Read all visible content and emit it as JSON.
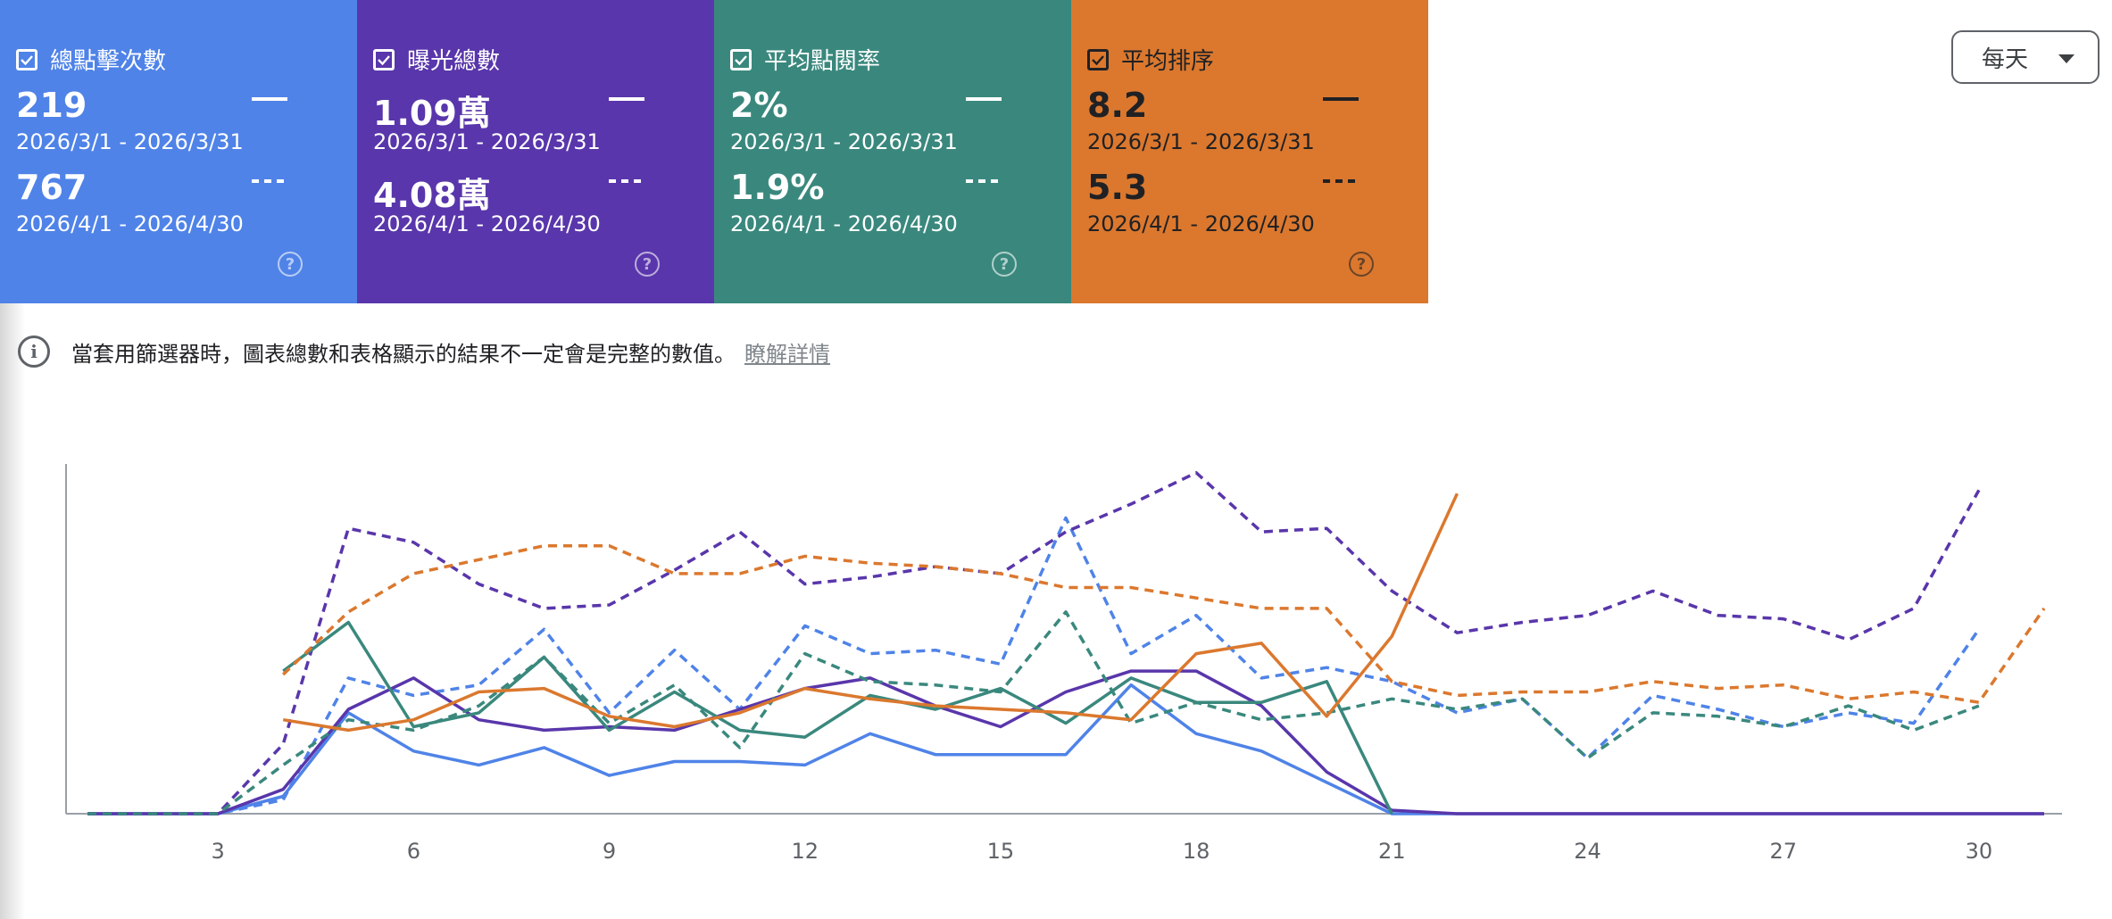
{
  "cards": [
    {
      "id": "clicks",
      "title": "總點擊次數",
      "value1": "219",
      "range1": "2026/3/1 - 2026/3/31",
      "value2": "767",
      "range2": "2026/4/1 - 2026/4/30",
      "bg": "#4f83e8",
      "checked": true
    },
    {
      "id": "impressions",
      "title": "曝光總數",
      "value1": "1.09萬",
      "range1": "2026/3/1 - 2026/3/31",
      "value2": "4.08萬",
      "range2": "2026/4/1 - 2026/4/30",
      "bg": "#5936ab",
      "checked": true
    },
    {
      "id": "ctr",
      "title": "平均點閱率",
      "value1": "2%",
      "range1": "2026/3/1 - 2026/3/31",
      "value2": "1.9%",
      "range2": "2026/4/1 - 2026/4/30",
      "bg": "#3a887d",
      "checked": true
    },
    {
      "id": "position",
      "title": "平均排序",
      "value1": "8.2",
      "range1": "2026/3/1 - 2026/3/31",
      "value2": "5.3",
      "range2": "2026/4/1 - 2026/4/30",
      "bg": "#db782e",
      "checked": true
    }
  ],
  "period_selector": {
    "label": "每天",
    "icon": "dropdown-caret-icon"
  },
  "notice": {
    "icon": "info-icon",
    "text": "當套用篩選器時，圖表總數和表格顯示的結果不一定會是完整的數值。",
    "link": "瞭解詳情"
  },
  "chart_data": {
    "type": "line",
    "x_ticks": [
      "3",
      "6",
      "9",
      "12",
      "15",
      "18",
      "21",
      "24",
      "27",
      "30"
    ],
    "x": [
      1,
      2,
      3,
      4,
      5,
      6,
      7,
      8,
      9,
      10,
      11,
      12,
      13,
      14,
      15,
      16,
      17,
      18,
      19,
      20,
      21,
      22,
      23,
      24,
      25,
      26,
      27,
      28,
      29,
      30,
      31
    ],
    "xlim": [
      1,
      31
    ],
    "ylim": [
      0,
      100
    ],
    "y_scale_note": "each metric normalized to its own scale; no y tick labels shown",
    "series": [
      {
        "metric": "clicks",
        "period": "current",
        "color": "#4f83e8",
        "style": "solid",
        "values": [
          0,
          0,
          0,
          5,
          29,
          18,
          14,
          19,
          11,
          15,
          15,
          14,
          23,
          17,
          17,
          17,
          37,
          23,
          18,
          9,
          0,
          0,
          0,
          0,
          0,
          0,
          0,
          0,
          0,
          0,
          0
        ]
      },
      {
        "metric": "clicks",
        "period": "previous",
        "color": "#4f83e8",
        "style": "dashed",
        "values": [
          0,
          0,
          0,
          4,
          39,
          34,
          37,
          53,
          29,
          47,
          30,
          54,
          46,
          47,
          43,
          85,
          46,
          57,
          39,
          42,
          38,
          29,
          33,
          16,
          34,
          30,
          25,
          29,
          26,
          53,
          null
        ]
      },
      {
        "metric": "impressions",
        "period": "current",
        "color": "#5936ab",
        "style": "solid",
        "values": [
          0,
          0,
          0,
          7,
          30,
          39,
          27,
          24,
          25,
          24,
          30,
          36,
          39,
          31,
          25,
          35,
          41,
          41,
          31,
          12,
          1,
          0,
          0,
          0,
          0,
          0,
          0,
          0,
          0,
          0,
          0
        ]
      },
      {
        "metric": "impressions",
        "period": "previous",
        "color": "#5936ab",
        "style": "dashed",
        "values": [
          0,
          0,
          0,
          20,
          82,
          78,
          66,
          59,
          60,
          70,
          81,
          66,
          68,
          71,
          69,
          81,
          89,
          98,
          81,
          82,
          64,
          52,
          55,
          57,
          64,
          57,
          56,
          50,
          59,
          93,
          null
        ]
      },
      {
        "metric": "ctr",
        "period": "current",
        "color": "#3a887d",
        "style": "solid",
        "values": [
          null,
          null,
          null,
          41,
          55,
          25,
          29,
          45,
          24,
          35,
          24,
          22,
          34,
          30,
          36,
          26,
          39,
          32,
          32,
          38,
          0,
          null,
          null,
          null,
          null,
          null,
          null,
          null,
          null,
          null,
          null
        ]
      },
      {
        "metric": "ctr",
        "period": "previous",
        "color": "#3a887d",
        "style": "dashed",
        "values": [
          0,
          0,
          0,
          14,
          27,
          24,
          31,
          45,
          26,
          37,
          19,
          46,
          38,
          37,
          35,
          58,
          26,
          32,
          27,
          29,
          33,
          30,
          33,
          16,
          29,
          28,
          25,
          31,
          24,
          31,
          null
        ]
      },
      {
        "metric": "position",
        "period": "current",
        "color": "#db782e",
        "style": "solid",
        "values": [
          null,
          null,
          null,
          27,
          24,
          27,
          35,
          36,
          28,
          25,
          29,
          36,
          33,
          31,
          30,
          29,
          27,
          46,
          49,
          28,
          51,
          92,
          null,
          null,
          null,
          null,
          null,
          null,
          null,
          null,
          null
        ]
      },
      {
        "metric": "position",
        "period": "previous",
        "color": "#db782e",
        "style": "dashed",
        "values": [
          null,
          null,
          null,
          40,
          58,
          69,
          73,
          77,
          77,
          69,
          69,
          74,
          72,
          71,
          69,
          65,
          65,
          62,
          59,
          59,
          38,
          34,
          35,
          35,
          38,
          36,
          37,
          33,
          35,
          32,
          59
        ]
      }
    ]
  }
}
